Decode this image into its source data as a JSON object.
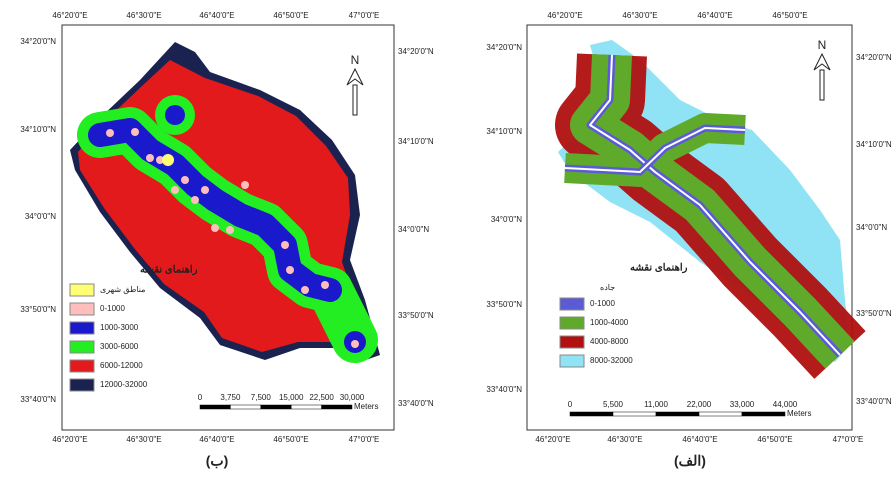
{
  "panels": [
    {
      "caption": "(ب)",
      "north_label": "N",
      "top_labels": [
        "46°20'0\"E",
        "46°30'0\"E",
        "46°40'0\"E",
        "46°50'0\"E",
        "47°0'0\"E"
      ],
      "bottom_labels": [
        "46°20'0\"E",
        "46°30'0\"E",
        "46°40'0\"E",
        "46°50'0\"E",
        "47°0'0\"E"
      ],
      "left_labels": [
        "34°20'0\"N",
        "34°10'0\"N",
        "34°0'0\"N",
        "33°50'0\"N",
        "33°40'0\"N"
      ],
      "right_labels": [
        "34°20'0\"N",
        "34°10'0\"N",
        "34°0'0\"N",
        "33°50'0\"N",
        "33°40'0\"N"
      ],
      "legend": {
        "title": "راهنمای نقشه",
        "items": [
          {
            "label": "مناطق شهری",
            "color": "#ffff73"
          },
          {
            "label": "0-1000",
            "color": "#ffbebe"
          },
          {
            "label": "1000-3000",
            "color": "#1a1acc"
          },
          {
            "label": "3000-6000",
            "color": "#22ee22"
          },
          {
            "label": "6000-12000",
            "color": "#e31a1c"
          },
          {
            "label": "12000-32000",
            "color": "#1a2350"
          }
        ]
      },
      "scale": {
        "labels": [
          "0",
          "3,750",
          "7,500",
          "15,000",
          "22,500",
          "30,000"
        ],
        "unit": "Meters"
      }
    },
    {
      "caption": "(الف)",
      "north_label": "N",
      "top_labels": [
        "46°20'0\"E",
        "46°30'0\"E",
        "46°40'0\"E",
        "46°50'0\"E"
      ],
      "bottom_labels": [
        "46°20'0\"E",
        "46°30'0\"E",
        "46°40'0\"E",
        "46°50'0\"E",
        "47°0'0\"E"
      ],
      "left_labels": [
        "34°20'0\"N",
        "34°10'0\"N",
        "34°0'0\"N",
        "33°50'0\"N",
        "33°40'0\"N"
      ],
      "right_labels": [
        "34°20'0\"N",
        "34°10'0\"N",
        "34°0'0\"N",
        "33°50'0\"N",
        "33°40'0\"N"
      ],
      "legend": {
        "title": "راهنمای نقشه",
        "subtitle": "جاده",
        "items": [
          {
            "label": "0-1000",
            "color": "#5b5bd6"
          },
          {
            "label": "1000-4000",
            "color": "#5faa2a"
          },
          {
            "label": "4000-8000",
            "color": "#b01010"
          },
          {
            "label": "8000-32000",
            "color": "#8fe3f5"
          }
        ]
      },
      "scale": {
        "labels": [
          "0",
          "5,500",
          "11,000",
          "22,000",
          "33,000",
          "44,000"
        ],
        "unit": "Meters"
      }
    }
  ]
}
